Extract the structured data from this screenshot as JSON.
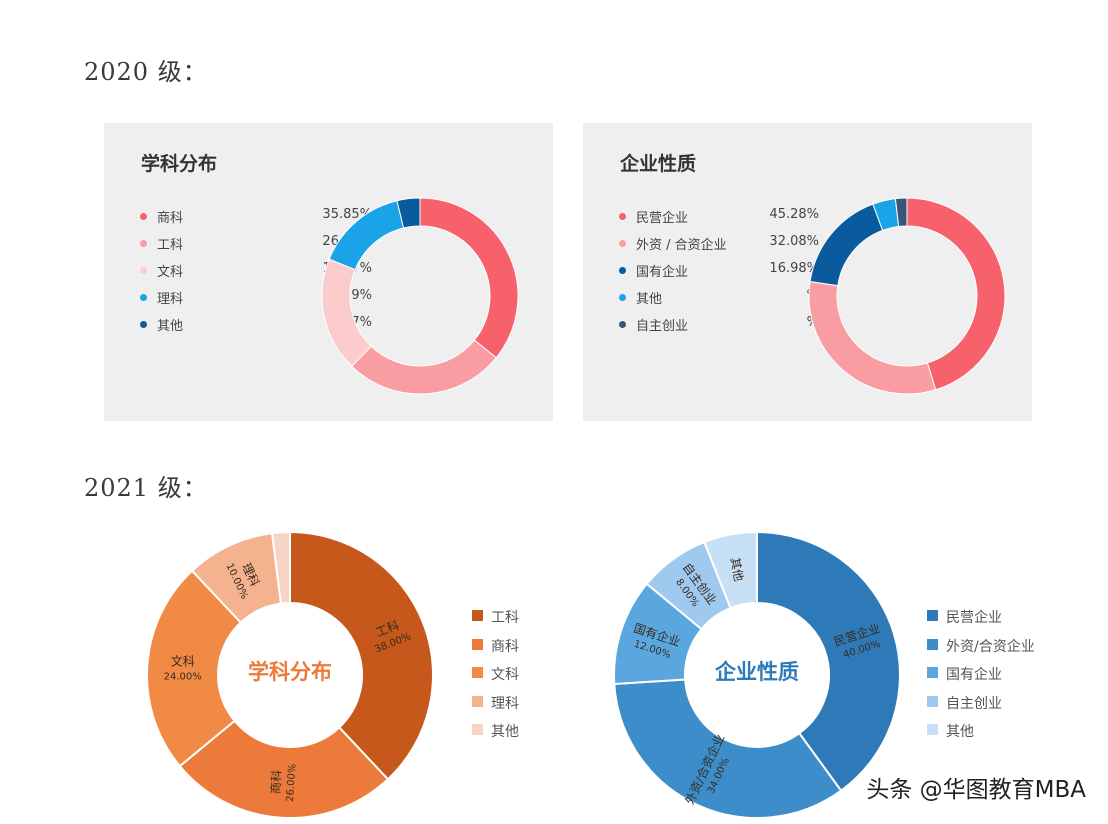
{
  "sections": [
    {
      "year_label": "2020 级："
    },
    {
      "year_label": "2021 级："
    }
  ],
  "watermark": "头条 @华图教育MBA",
  "chart_data": [
    {
      "id": "2020-subject",
      "type": "pie",
      "title": "学科分布",
      "legend_position": "left",
      "categories": [
        "商科",
        "工科",
        "文科",
        "理科",
        "其他"
      ],
      "values": [
        35.85,
        26.42,
        18.87,
        15.09,
        3.77
      ],
      "value_labels": [
        "35.85%",
        "26.42%",
        "18.87%",
        "15.09%",
        "3.77%"
      ],
      "colors": [
        "#f7616b",
        "#f99da2",
        "#fccccd",
        "#1ba3e8",
        "#0a5a9e"
      ]
    },
    {
      "id": "2020-company",
      "type": "pie",
      "title": "企业性质",
      "legend_position": "left",
      "categories": [
        "民营企业",
        "外资 / 合资企业",
        "国有企业",
        "其他",
        "自主创业"
      ],
      "values": [
        45.28,
        32.08,
        16.98,
        3.77,
        1.89
      ],
      "value_labels": [
        "45.28%",
        "32.08%",
        "16.98%",
        "%",
        "%"
      ],
      "colors": [
        "#f7616b",
        "#f99da2",
        "#0a5a9e",
        "#1ba3e8",
        "#37567a"
      ]
    },
    {
      "id": "2021-subject",
      "type": "pie",
      "title": "学科分布",
      "legend_position": "right",
      "categories": [
        "工科",
        "商科",
        "文科",
        "理科",
        "其他"
      ],
      "values": [
        38.0,
        26.0,
        24.0,
        10.0,
        2.0
      ],
      "slice_labels": [
        {
          "name": "工科",
          "value": "38.00%"
        },
        {
          "name": "商科",
          "value": "26.00%"
        },
        {
          "name": "文科",
          "value": "24.00%"
        },
        {
          "name": "理科",
          "value": "10.00%"
        },
        {
          "name": "",
          "value": ""
        }
      ],
      "colors": [
        "#c5581a",
        "#ec7a3a",
        "#f08a45",
        "#f5b28e",
        "#f8d4c6"
      ]
    },
    {
      "id": "2021-company",
      "type": "pie",
      "title": "企业性质",
      "legend_position": "right",
      "categories": [
        "民营企业",
        "外资/合资企业",
        "国有企业",
        "自主创业",
        "其他"
      ],
      "values": [
        40.0,
        34.0,
        12.0,
        8.0,
        6.0
      ],
      "slice_labels": [
        {
          "name": "民营企业",
          "value": "40.00%"
        },
        {
          "name": "外资/合资企业",
          "value": "34.00%"
        },
        {
          "name": "国有企业",
          "value": "12.00%"
        },
        {
          "name": "自主创业",
          "value": "8.00%"
        },
        {
          "name": "其他",
          "value": ""
        }
      ],
      "colors": [
        "#2e7ab8",
        "#3d8dcb",
        "#5aa6df",
        "#9fc9ee",
        "#c8e0f5"
      ]
    }
  ]
}
